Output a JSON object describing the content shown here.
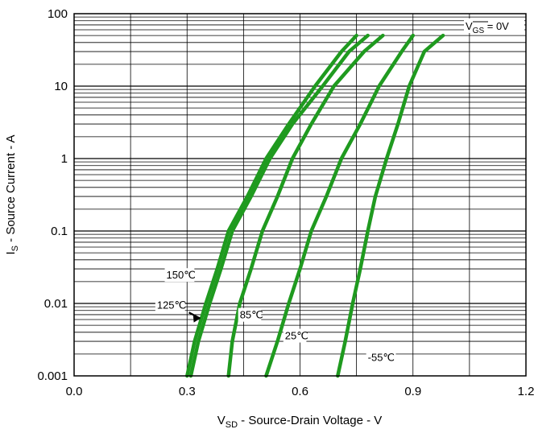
{
  "chart_data": {
    "type": "line",
    "title": "",
    "xlabel_main": "V",
    "xlabel_sub": "SD",
    "xlabel_rest": " - Source-Drain Voltage - V",
    "ylabel_main": "I",
    "ylabel_sub": "S",
    "ylabel_rest": " - Source Current - A",
    "xlim": [
      0.0,
      1.2
    ],
    "ylim": [
      0.001,
      100
    ],
    "yscale": "log",
    "grid": true,
    "x_ticks": [
      "0.0",
      "0.3",
      "0.6",
      "0.9",
      "1.2"
    ],
    "y_ticks": [
      "0.001",
      "0.01",
      "0.1",
      "1",
      "10",
      "100"
    ],
    "condition_main": "V",
    "condition_sub": "GS",
    "condition_rest": " = 0V",
    "series_color": "#1f9a1f",
    "series": [
      {
        "name": "150℃",
        "x": [
          0.3,
          0.32,
          0.35,
          0.38,
          0.41,
          0.46,
          0.51,
          0.57,
          0.64,
          0.71,
          0.75
        ],
        "y": [
          0.001,
          0.003,
          0.01,
          0.03,
          0.1,
          0.3,
          1,
          3,
          10,
          30,
          50
        ]
      },
      {
        "name": "125℃",
        "x": [
          0.31,
          0.33,
          0.36,
          0.39,
          0.42,
          0.47,
          0.52,
          0.58,
          0.66,
          0.73,
          0.78
        ],
        "y": [
          0.001,
          0.003,
          0.01,
          0.03,
          0.1,
          0.3,
          1,
          3,
          10,
          30,
          50
        ]
      },
      {
        "name": "85℃",
        "x": [
          0.41,
          0.42,
          0.44,
          0.47,
          0.5,
          0.54,
          0.58,
          0.63,
          0.69,
          0.77,
          0.82
        ],
        "y": [
          0.001,
          0.003,
          0.01,
          0.03,
          0.1,
          0.3,
          1,
          3,
          10,
          30,
          50
        ]
      },
      {
        "name": "25℃",
        "x": [
          0.51,
          0.54,
          0.57,
          0.6,
          0.63,
          0.67,
          0.71,
          0.76,
          0.81,
          0.87,
          0.9
        ],
        "y": [
          0.001,
          0.003,
          0.01,
          0.03,
          0.1,
          0.3,
          1,
          3,
          10,
          30,
          50
        ]
      },
      {
        "name": "-55℃",
        "x": [
          0.7,
          0.72,
          0.74,
          0.76,
          0.78,
          0.8,
          0.83,
          0.86,
          0.89,
          0.93,
          0.98
        ],
        "y": [
          0.001,
          0.003,
          0.01,
          0.03,
          0.1,
          0.3,
          1,
          3,
          10,
          30,
          50
        ]
      }
    ],
    "annotations": [
      "150℃",
      "125℃",
      "85℃",
      "25℃",
      "-55℃"
    ]
  }
}
